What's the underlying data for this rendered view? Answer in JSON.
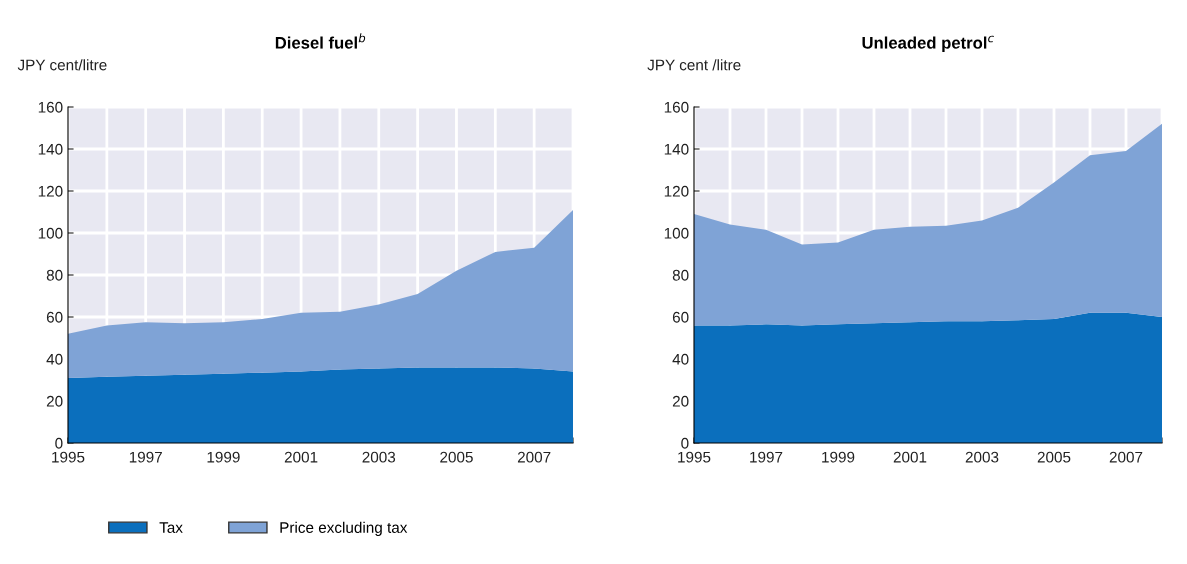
{
  "chart_data": [
    {
      "type": "area",
      "title": "Diesel fuel$^{b}$",
      "ylabel": "JPY cent/litre",
      "stacked": true,
      "x": [
        1995,
        1996,
        1997,
        1998,
        1999,
        2000,
        2001,
        2002,
        2003,
        2004,
        2005,
        2006,
        2007,
        2008
      ],
      "series": [
        {
          "name": "Tax",
          "color": "#0b6fbd",
          "values": [
            31,
            31.5,
            32,
            32.5,
            33,
            33.5,
            34,
            35,
            35.5,
            36,
            36,
            36,
            35.5,
            34
          ]
        },
        {
          "name": "Price excluding tax",
          "color": "#7fa3d6",
          "values": [
            21,
            24.5,
            25.5,
            24.5,
            24.5,
            25.5,
            28,
            27.5,
            30.5,
            35,
            46,
            55,
            57.5,
            77
          ]
        }
      ],
      "xlim": [
        1995,
        2008
      ],
      "xticks": [
        1995,
        {
          "value": 1996,
          "label": null
        },
        1997,
        {
          "value": 1998,
          "label": null
        },
        1999,
        {
          "value": 2000,
          "label": null
        },
        2001,
        {
          "value": 2002,
          "label": null
        },
        2003,
        {
          "value": 2004,
          "label": null
        },
        2005,
        {
          "value": 2006,
          "label": null
        },
        2007,
        {
          "value": 2008,
          "label": null
        }
      ],
      "ylim": [
        0,
        160
      ],
      "yticks": [
        0,
        20,
        40,
        60,
        80,
        100,
        120,
        140,
        160
      ],
      "grid": true,
      "legend": "bottom"
    },
    {
      "type": "area",
      "title": "Unleaded petrol$^{c}$",
      "ylabel": "JPY cent /litre",
      "stacked": true,
      "x": [
        1995,
        1996,
        1997,
        1998,
        1999,
        2000,
        2001,
        2002,
        2003,
        2004,
        2005,
        2006,
        2007,
        2008
      ],
      "series": [
        {
          "color": "#0b6fbd",
          "values": [
            56,
            56,
            56.5,
            56,
            56.5,
            57,
            57.5,
            58,
            58,
            58.5,
            59,
            62,
            62,
            60
          ]
        },
        {
          "color": "#7fa3d6",
          "values": [
            53,
            48,
            45,
            38.5,
            39,
            44.5,
            45.5,
            45.5,
            48,
            53.5,
            65,
            75,
            77,
            92
          ]
        }
      ],
      "xlim": [
        1995,
        2008
      ],
      "xticks": [
        1995,
        {
          "value": 1996,
          "label": null
        },
        1997,
        {
          "value": 1998,
          "label": null
        },
        1999,
        {
          "value": 2000,
          "label": null
        },
        2001,
        {
          "value": 2002,
          "label": null
        },
        2003,
        {
          "value": 2004,
          "label": null
        },
        2005,
        {
          "value": 2006,
          "label": null
        },
        2007,
        {
          "value": 2008,
          "label": null
        }
      ],
      "ylim": [
        0,
        160
      ],
      "yticks": [
        0,
        20,
        40,
        60,
        80,
        100,
        120,
        140,
        160
      ],
      "grid": true
    }
  ]
}
